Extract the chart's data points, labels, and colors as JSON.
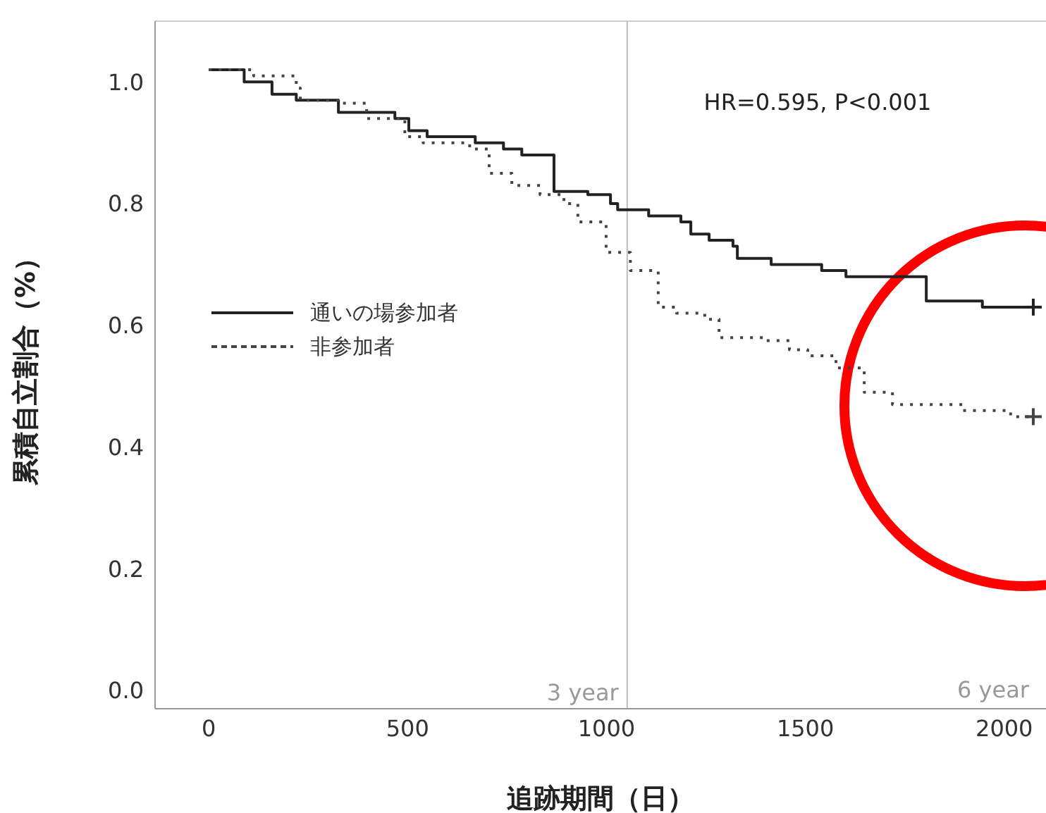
{
  "chart_data": {
    "type": "step",
    "xlabel": "追跡期間（日）",
    "ylabel": "累積自立割合（%）",
    "xlim": [
      -135,
      2105
    ],
    "xticks": [
      0,
      500,
      1000,
      1500,
      2000
    ],
    "ylim": [
      -0.03,
      1.1
    ],
    "yticks": [
      {
        "value": 0,
        "label": "0.0"
      },
      {
        "value": 0.2,
        "label": "0.2"
      },
      {
        "value": 0.4,
        "label": "0.4"
      },
      {
        "value": 0.6,
        "label": "0.6"
      },
      {
        "value": 0.8,
        "label": "0.8"
      },
      {
        "value": 1,
        "label": "1.0"
      }
    ],
    "legend": "left",
    "series": [
      {
        "name": "通いの場参加者",
        "color": "#222222",
        "line_style": "solid",
        "x": [
          0,
          89,
          159,
          220,
          326,
          468,
          503,
          549,
          670,
          741,
          787,
          868,
          953,
          1010,
          1028,
          1106,
          1187,
          1212,
          1258,
          1318,
          1329,
          1414,
          1541,
          1602,
          1804,
          1945,
          2073
        ],
        "values": [
          1.02,
          1.0,
          0.98,
          0.97,
          0.95,
          0.94,
          0.92,
          0.91,
          0.9,
          0.89,
          0.88,
          0.82,
          0.815,
          0.8,
          0.79,
          0.78,
          0.77,
          0.75,
          0.74,
          0.73,
          0.71,
          0.7,
          0.69,
          0.68,
          0.64,
          0.63,
          0.63
        ]
      },
      {
        "name": "非参加者",
        "color": "#444444",
        "line_style": "dotted",
        "x": [
          0,
          113,
          220,
          230,
          337,
          397,
          493,
          539,
          656,
          705,
          762,
          833,
          893,
          928,
          999,
          1060,
          1130,
          1176,
          1247,
          1283,
          1400,
          1460,
          1506,
          1577,
          1648,
          1719,
          1896,
          2016,
          2073
        ],
        "values": [
          1.02,
          1.01,
          0.99,
          0.97,
          0.965,
          0.94,
          0.91,
          0.9,
          0.89,
          0.85,
          0.83,
          0.815,
          0.8,
          0.77,
          0.72,
          0.69,
          0.63,
          0.62,
          0.61,
          0.58,
          0.575,
          0.56,
          0.55,
          0.53,
          0.49,
          0.47,
          0.46,
          0.45,
          0.45
        ]
      }
    ],
    "ref_lines": [
      {
        "axis": "x",
        "value": 1052,
        "label": "3 year",
        "color": "#bbbbbb"
      }
    ],
    "annotations": [
      "HR=0.595, P<0.001",
      "6 year"
    ]
  }
}
